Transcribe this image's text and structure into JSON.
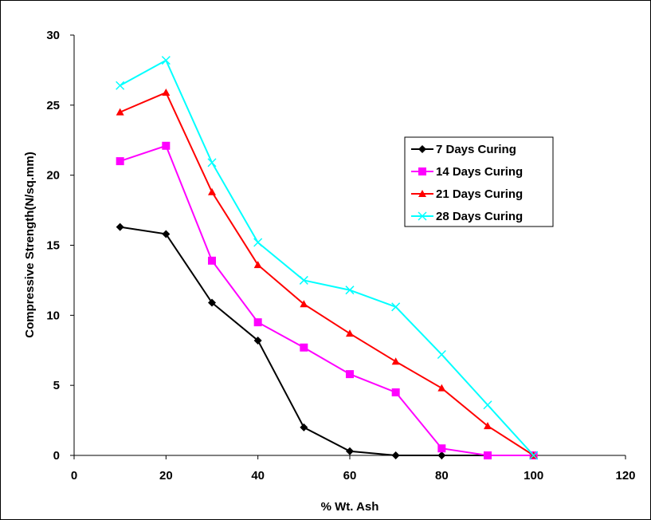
{
  "chart_data": {
    "type": "line",
    "title": "",
    "xlabel": "% Wt. Ash",
    "ylabel": "Compressive Strength(N/sq.mm)",
    "xlim": [
      0,
      120
    ],
    "ylim": [
      0,
      30
    ],
    "xticks": [
      0,
      20,
      40,
      60,
      80,
      100,
      120
    ],
    "yticks": [
      0,
      5,
      10,
      15,
      20,
      25,
      30
    ],
    "grid": false,
    "legend_position": "right",
    "series": [
      {
        "name": "7 Days Curing",
        "color": "#000000",
        "marker": "diamond",
        "x": [
          10,
          20,
          30,
          40,
          50,
          60,
          70,
          80,
          90,
          100
        ],
        "y": [
          16.3,
          15.8,
          10.9,
          8.2,
          2.0,
          0.3,
          0,
          0,
          0,
          0
        ]
      },
      {
        "name": "14 Days Curing",
        "color": "#ff00ff",
        "marker": "square",
        "x": [
          10,
          20,
          30,
          40,
          50,
          60,
          70,
          80,
          90,
          100
        ],
        "y": [
          21.0,
          22.1,
          13.9,
          9.5,
          7.7,
          5.8,
          4.5,
          0.5,
          0,
          0
        ]
      },
      {
        "name": "21 Days Curing",
        "color": "#ff0000",
        "marker": "triangle",
        "x": [
          10,
          20,
          30,
          40,
          50,
          60,
          70,
          80,
          90,
          100
        ],
        "y": [
          24.5,
          25.9,
          18.8,
          13.6,
          10.8,
          8.7,
          6.7,
          4.8,
          2.1,
          0
        ]
      },
      {
        "name": "28 Days Curing",
        "color": "#00ffff",
        "marker": "x",
        "x": [
          10,
          20,
          30,
          40,
          50,
          60,
          70,
          80,
          90,
          100
        ],
        "y": [
          26.4,
          28.2,
          20.9,
          15.2,
          12.5,
          11.8,
          10.6,
          7.2,
          3.6,
          0
        ]
      }
    ]
  }
}
